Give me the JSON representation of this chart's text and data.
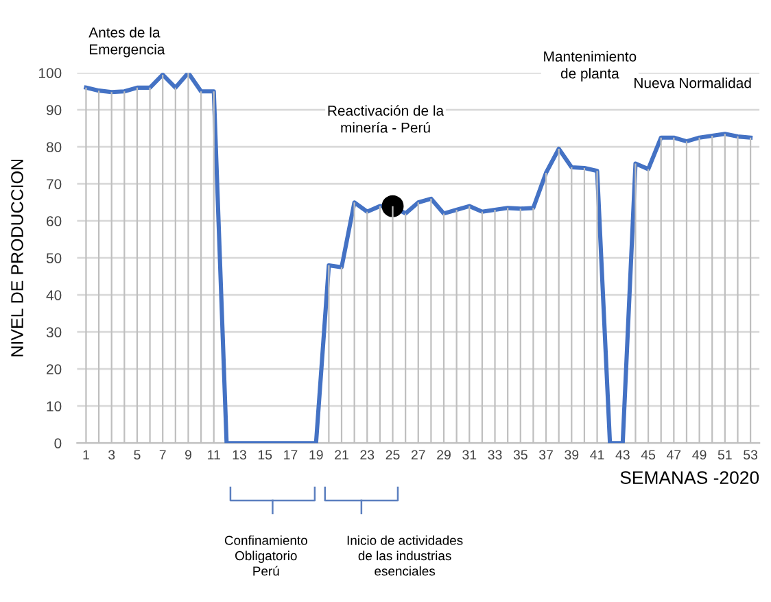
{
  "chart_data": {
    "type": "line",
    "xlabel": "SEMANAS -2020",
    "ylabel": "NIVEL DE PRODUCCION",
    "x": [
      1,
      2,
      3,
      4,
      5,
      6,
      7,
      8,
      9,
      10,
      11,
      12,
      13,
      14,
      15,
      16,
      17,
      18,
      19,
      20,
      21,
      22,
      23,
      24,
      25,
      26,
      27,
      28,
      29,
      30,
      31,
      32,
      33,
      34,
      35,
      36,
      37,
      38,
      39,
      40,
      41,
      42,
      43,
      44,
      45,
      46,
      47,
      48,
      49,
      50,
      51,
      52,
      53
    ],
    "series": [
      {
        "type": "bar",
        "color": "#bfbfbf",
        "values": [
          96,
          95.2,
          94.8,
          95,
          96,
          96,
          99.5,
          96,
          100,
          95,
          95,
          0,
          0,
          0,
          0,
          0,
          0,
          0,
          0,
          48,
          47.5,
          65,
          62.5,
          64,
          64,
          62,
          65,
          66,
          62,
          63,
          64,
          62.5,
          63,
          63.5,
          63.3,
          63.5,
          73,
          79.5,
          74.5,
          74.3,
          73.5,
          0,
          0,
          75.5,
          74,
          82.5,
          82.5,
          81.5,
          82.5,
          83,
          83.5,
          82.8,
          82.5
        ]
      },
      {
        "color": "#4472c4",
        "values": [
          96,
          95.2,
          94.8,
          95,
          96,
          96,
          99.5,
          96,
          100,
          95,
          95,
          0,
          0,
          0,
          0,
          0,
          0,
          0,
          0,
          48,
          47.5,
          65,
          62.5,
          64,
          64,
          62,
          65,
          66,
          62,
          63,
          64,
          62.5,
          63,
          63.5,
          63.3,
          63.5,
          73,
          79.5,
          74.5,
          74.3,
          73.5,
          0,
          0,
          75.5,
          74,
          82.5,
          82.5,
          81.5,
          82.5,
          83,
          83.5,
          82.8,
          82.5
        ]
      },
      {
        "type": "scatter",
        "color": "#000000",
        "x": [
          25
        ],
        "values": [
          64
        ]
      }
    ],
    "xlim": [
      0.3,
      53.7
    ],
    "xticks": [
      1,
      3,
      5,
      7,
      9,
      11,
      13,
      15,
      17,
      19,
      21,
      23,
      25,
      27,
      29,
      31,
      33,
      35,
      37,
      39,
      41,
      43,
      45,
      47,
      49,
      51,
      53
    ],
    "ylim": [
      0,
      100
    ],
    "yticks": [
      0,
      10,
      20,
      30,
      40,
      50,
      60,
      70,
      80,
      90,
      100
    ],
    "grid": "y",
    "annotations": [
      "Antes de la\nEmergencia",
      "Reactivación de la\nminería - Perú",
      "Mantenimiento\nde planta",
      "Nueva Normalidad",
      "Confinamiento\nObligatorio\nPerú",
      "Inicio de actividades\nde las industrias\nesenciales"
    ]
  }
}
